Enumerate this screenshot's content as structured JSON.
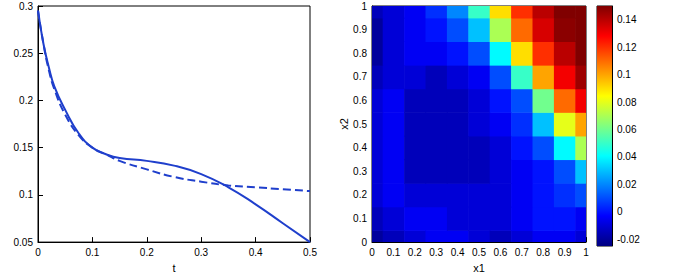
{
  "chart_data": [
    {
      "type": "line",
      "xlabel": "t",
      "xlim": [
        0,
        0.5
      ],
      "xticks": [
        0,
        0.1,
        0.2,
        0.3,
        0.4,
        0.5
      ],
      "ylim": [
        0.05,
        0.3
      ],
      "yticks": [
        0.05,
        0.1,
        0.15,
        0.2,
        0.25,
        0.3
      ],
      "grid": false,
      "x": [
        0,
        0.01,
        0.02,
        0.03,
        0.05,
        0.075,
        0.1,
        0.125,
        0.15,
        0.2,
        0.25,
        0.3,
        0.35,
        0.4,
        0.45,
        0.5
      ],
      "series": [
        {
          "color": "#1f3fcc",
          "line_style": "solid",
          "values": [
            0.295,
            0.26,
            0.235,
            0.215,
            0.19,
            0.165,
            0.15,
            0.143,
            0.139,
            0.136,
            0.131,
            0.122,
            0.108,
            0.09,
            0.07,
            0.05
          ]
        },
        {
          "color": "#1f3fcc",
          "line_style": "dashed",
          "values": [
            0.295,
            0.26,
            0.232,
            0.212,
            0.185,
            0.163,
            0.15,
            0.143,
            0.136,
            0.127,
            0.119,
            0.114,
            0.11,
            0.108,
            0.106,
            0.104
          ]
        }
      ]
    },
    {
      "type": "heatmap",
      "xlabel": "x1",
      "ylabel": "x2",
      "xlim": [
        0,
        1
      ],
      "xticks": [
        0,
        0.1,
        0.2,
        0.3,
        0.4,
        0.5,
        0.6,
        0.7,
        0.8,
        0.9,
        1
      ],
      "ylim": [
        0,
        1
      ],
      "yticks": [
        0,
        0.1,
        0.2,
        0.3,
        0.4,
        0.5,
        0.6,
        0.7,
        0.8,
        0.9,
        1
      ],
      "grid": false,
      "x": [
        0,
        0.1,
        0.2,
        0.3,
        0.4,
        0.5,
        0.6,
        0.7,
        0.8,
        0.9,
        1
      ],
      "y": [
        0,
        0.1,
        0.2,
        0.3,
        0.4,
        0.5,
        0.6,
        0.7,
        0.8,
        0.9,
        1
      ],
      "z": [
        [
          -0.02,
          -0.015,
          -0.01,
          -0.005,
          -0.005,
          -0.01,
          -0.015,
          -0.01,
          -0.005,
          -0.005,
          -0.01
        ],
        [
          -0.015,
          -0.01,
          -0.005,
          -0.005,
          -0.01,
          -0.01,
          -0.01,
          -0.005,
          0,
          0,
          -0.005
        ],
        [
          -0.01,
          -0.005,
          -0.01,
          -0.01,
          -0.01,
          -0.01,
          -0.01,
          -0.005,
          0,
          0.005,
          0.01
        ],
        [
          -0.01,
          -0.005,
          -0.015,
          -0.015,
          -0.015,
          -0.015,
          -0.01,
          -0.005,
          0,
          0.01,
          0.03
        ],
        [
          -0.01,
          -0.005,
          -0.015,
          -0.015,
          -0.015,
          -0.015,
          -0.01,
          0,
          0.01,
          0.04,
          0.07
        ],
        [
          -0.01,
          -0.005,
          -0.015,
          -0.015,
          -0.015,
          -0.01,
          -0.005,
          0.005,
          0.03,
          0.08,
          0.1
        ],
        [
          -0.01,
          -0.005,
          -0.015,
          -0.015,
          -0.015,
          -0.01,
          0,
          0.01,
          0.06,
          0.11,
          0.13
        ],
        [
          -0.015,
          -0.01,
          -0.01,
          -0.015,
          -0.01,
          -0.005,
          0.01,
          0.05,
          0.1,
          0.13,
          0.145
        ],
        [
          -0.02,
          -0.01,
          -0.005,
          -0.005,
          0,
          0.01,
          0.04,
          0.09,
          0.12,
          0.14,
          0.15
        ],
        [
          -0.02,
          -0.01,
          -0.005,
          0,
          0.01,
          0.03,
          0.07,
          0.11,
          0.135,
          0.148,
          0.15
        ],
        [
          -0.015,
          -0.01,
          -0.005,
          0.005,
          0.02,
          0.05,
          0.09,
          0.12,
          0.14,
          0.15,
          0.15
        ]
      ],
      "colorbar_lim": [
        -0.025,
        0.15
      ],
      "colorbar_ticks": [
        -0.02,
        0,
        0.02,
        0.04,
        0.06,
        0.08,
        0.1,
        0.12,
        0.14
      ]
    }
  ]
}
